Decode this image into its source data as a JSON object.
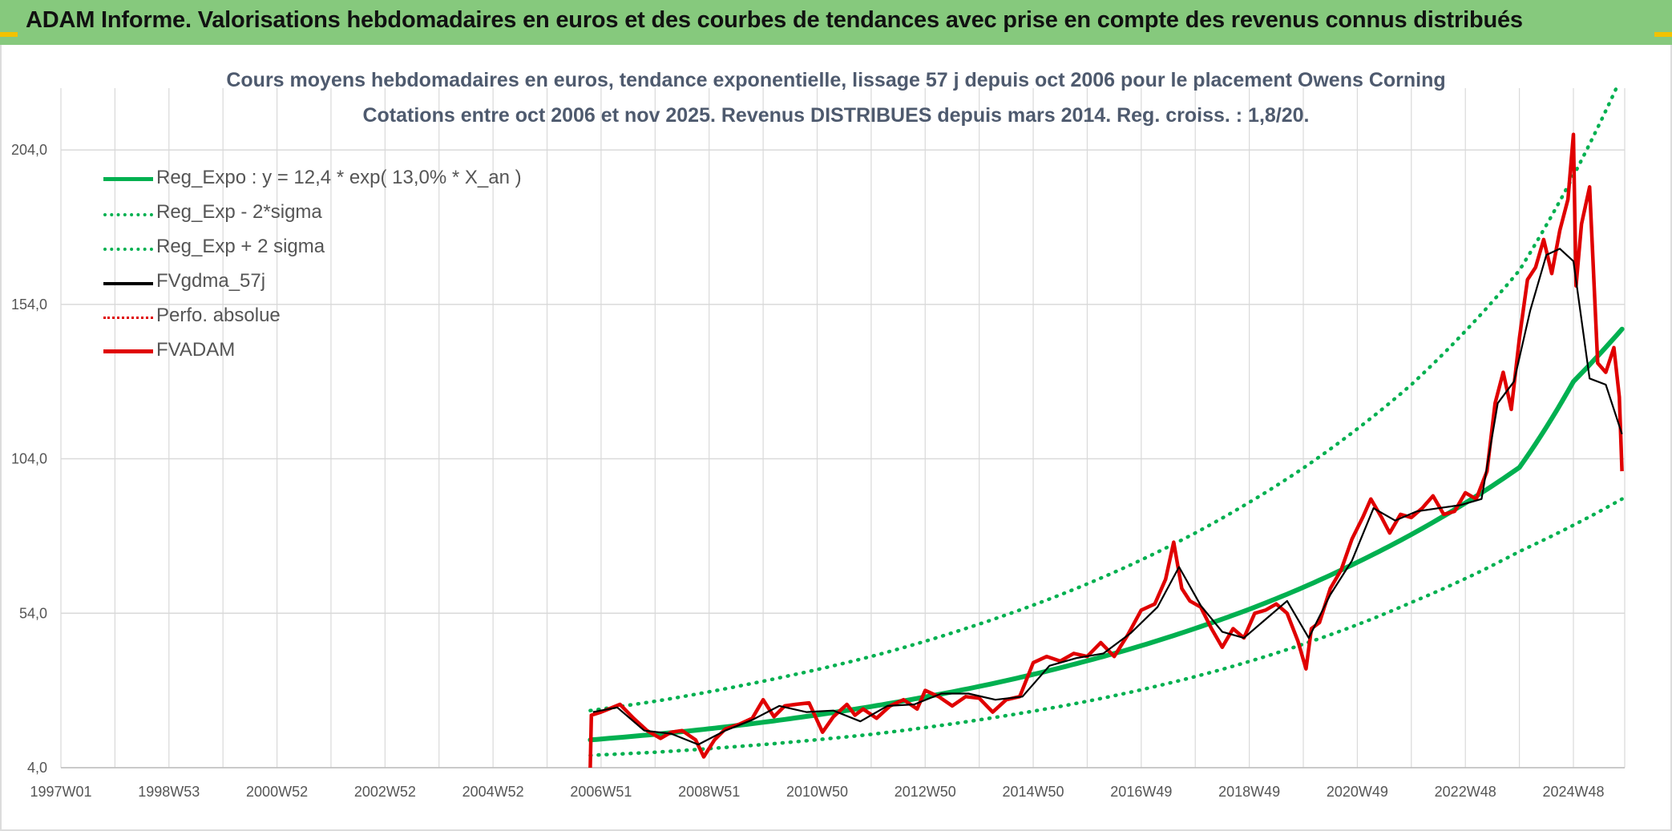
{
  "header": {
    "title": "ADAM Informe. Valorisations hebdomadaires en euros et des courbes de tendances avec prise en compte des revenus connus distribués"
  },
  "chart_data": {
    "type": "line",
    "title_line1": "Cours moyens hebdomadaires en euros, tendance exponentielle, lissage 57 j depuis oct 2006 pour le placement Owens Corning",
    "title_line2": "Cotations entre oct 2006 et nov 2025. Revenus DISTRIBUES depuis mars 2014. Reg. croiss. : 1,8/20.",
    "xlabel": "",
    "ylabel": "",
    "x_ticks": [
      "1997W01",
      "1998W53",
      "2000W52",
      "2002W52",
      "2004W52",
      "2006W51",
      "2008W51",
      "2010W50",
      "2012W50",
      "2014W50",
      "2016W49",
      "2018W49",
      "2020W49",
      "2022W48",
      "2024W48"
    ],
    "y_ticks": [
      "4,0",
      "54,0",
      "104,0",
      "154,0",
      "204,0"
    ],
    "ylim": [
      4,
      224
    ],
    "xlim": [
      1997.0,
      2025.95
    ],
    "grid": true,
    "legend_position": "top-left",
    "colors": {
      "reg_expo": "#00b050",
      "sigma_bands": "#00b050",
      "fvgdma": "#000000",
      "perfo": "#e00000",
      "fvadam": "#e00000",
      "header_bg": "#86c97d"
    },
    "legend": [
      {
        "key": "reg_expo",
        "label": "Reg_Expo : y = 12,4 * exp( 13,0% *  X_an )",
        "style": "solid-thick",
        "color": "#00b050"
      },
      {
        "key": "reg_minus",
        "label": "Reg_Exp - 2*sigma",
        "style": "dotted",
        "color": "#00b050"
      },
      {
        "key": "reg_plus",
        "label": "Reg_Exp + 2 sigma",
        "style": "dotted",
        "color": "#00b050"
      },
      {
        "key": "fvgdma",
        "label": "FVgdma_57j",
        "style": "solid",
        "color": "#000000"
      },
      {
        "key": "perfo",
        "label": "Perfo. absolue",
        "style": "dotted",
        "color": "#e00000"
      },
      {
        "key": "fvadam",
        "label": "FVADAM",
        "style": "solid-thick",
        "color": "#e00000"
      }
    ],
    "series": [
      {
        "name": "Reg_Expo : y = 12,4 * exp( 13,0% *  X_an )",
        "key": "reg_expo",
        "x": [
          2006.8,
          2008.0,
          2009.0,
          2010.0,
          2011.0,
          2012.0,
          2013.0,
          2014.0,
          2015.0,
          2016.0,
          2017.0,
          2018.0,
          2019.0,
          2020.0,
          2021.0,
          2022.0,
          2023.0,
          2024.0,
          2025.0,
          2025.9
        ],
        "values": [
          13.0,
          14.8,
          16.6,
          18.7,
          21.1,
          23.8,
          26.9,
          30.3,
          34.2,
          38.6,
          43.5,
          49.1,
          55.3,
          62.4,
          70.5,
          79.5,
          89.7,
          101.2,
          129.0,
          146.0
        ]
      },
      {
        "name": "Reg_Exp - 2*sigma",
        "key": "reg_minus",
        "x": [
          2006.8,
          2008.0,
          2010.0,
          2012.0,
          2014.0,
          2016.0,
          2018.0,
          2020.0,
          2022.0,
          2024.0,
          2025.9
        ],
        "values": [
          8.0,
          9.0,
          11.5,
          14.8,
          19.5,
          25.5,
          33.5,
          44.0,
          57.5,
          74.0,
          91.0
        ]
      },
      {
        "name": "Reg_Exp + 2 sigma",
        "key": "reg_plus",
        "x": [
          2006.8,
          2008.0,
          2010.0,
          2012.0,
          2014.0,
          2016.0,
          2018.0,
          2020.0,
          2022.0,
          2024.0,
          2025.9
        ],
        "values": [
          22.5,
          25.5,
          32.0,
          40.0,
          50.5,
          63.5,
          80.0,
          101.0,
          128.0,
          165.0,
          228.0
        ]
      },
      {
        "name": "FVgdma_57j",
        "key": "fvgdma",
        "x": [
          2006.85,
          2007.3,
          2007.8,
          2008.3,
          2008.8,
          2009.3,
          2009.8,
          2010.3,
          2010.8,
          2011.3,
          2011.8,
          2012.3,
          2012.8,
          2013.3,
          2013.8,
          2014.3,
          2014.8,
          2015.3,
          2015.8,
          2016.3,
          2016.8,
          2017.3,
          2017.7,
          2018.1,
          2018.5,
          2018.9,
          2019.3,
          2019.7,
          2020.1,
          2020.5,
          2020.9,
          2021.3,
          2021.7,
          2022.1,
          2022.5,
          2022.9,
          2023.3,
          2023.6,
          2023.9,
          2024.2,
          2024.5,
          2024.75,
          2025.0,
          2025.3,
          2025.6,
          2025.9
        ],
        "values": [
          22.0,
          23.5,
          16.0,
          15.0,
          11.5,
          16.0,
          19.5,
          24.0,
          22.0,
          22.5,
          19.0,
          24.0,
          24.5,
          28.0,
          28.0,
          26.0,
          27.0,
          37.0,
          39.5,
          41.0,
          47.5,
          56.0,
          69.0,
          56.5,
          48.0,
          46.0,
          52.0,
          58.0,
          46.0,
          60.0,
          71.0,
          88.0,
          84.0,
          87.0,
          88.0,
          89.0,
          91.0,
          122.0,
          129.0,
          152.0,
          170.0,
          172.0,
          168.0,
          130.0,
          128.0,
          112.0
        ]
      },
      {
        "name": "FVADAM",
        "key": "fvadam",
        "x": [
          2006.8,
          2006.82,
          2007.0,
          2007.35,
          2007.6,
          2007.85,
          2008.1,
          2008.3,
          2008.5,
          2008.75,
          2008.9,
          2009.1,
          2009.3,
          2009.55,
          2009.8,
          2010.0,
          2010.2,
          2010.4,
          2010.6,
          2010.85,
          2011.1,
          2011.3,
          2011.55,
          2011.7,
          2011.85,
          2012.1,
          2012.35,
          2012.6,
          2012.85,
          2013.0,
          2013.25,
          2013.5,
          2013.75,
          2014.0,
          2014.25,
          2014.5,
          2014.75,
          2015.0,
          2015.25,
          2015.5,
          2015.75,
          2016.0,
          2016.25,
          2016.5,
          2016.75,
          2017.0,
          2017.25,
          2017.45,
          2017.6,
          2017.75,
          2017.9,
          2018.1,
          2018.3,
          2018.5,
          2018.7,
          2018.9,
          2019.1,
          2019.3,
          2019.5,
          2019.7,
          2019.9,
          2020.05,
          2020.15,
          2020.3,
          2020.5,
          2020.7,
          2020.9,
          2021.1,
          2021.25,
          2021.45,
          2021.6,
          2021.8,
          2022.0,
          2022.2,
          2022.4,
          2022.6,
          2022.8,
          2023.0,
          2023.2,
          2023.4,
          2023.55,
          2023.7,
          2023.85,
          2024.0,
          2024.15,
          2024.3,
          2024.45,
          2024.6,
          2024.75,
          2024.9,
          2025.0,
          2025.05,
          2025.15,
          2025.3,
          2025.45,
          2025.6,
          2025.75,
          2025.85,
          2025.9
        ],
        "values": [
          4.0,
          21.0,
          22.0,
          24.5,
          20.0,
          16.0,
          13.5,
          15.5,
          16.0,
          13.0,
          7.5,
          13.0,
          16.5,
          18.0,
          20.0,
          26.0,
          20.5,
          24.0,
          24.5,
          25.0,
          15.5,
          20.5,
          24.5,
          21.0,
          23.0,
          20.0,
          24.0,
          26.0,
          23.0,
          29.0,
          27.0,
          24.0,
          27.0,
          26.5,
          22.0,
          26.0,
          27.0,
          38.0,
          40.0,
          38.5,
          41.0,
          40.0,
          44.5,
          40.0,
          47.0,
          55.0,
          57.0,
          65.0,
          77.0,
          62.0,
          58.0,
          56.0,
          49.0,
          43.0,
          49.0,
          46.0,
          54.0,
          55.0,
          57.0,
          54.0,
          45.0,
          36.0,
          49.0,
          51.0,
          62.0,
          68.0,
          78.0,
          85.0,
          91.0,
          85.0,
          80.0,
          86.0,
          85.0,
          88.0,
          92.0,
          86.0,
          87.0,
          93.0,
          91.0,
          100.0,
          122.0,
          132.0,
          120.0,
          143.0,
          162.0,
          166.0,
          175.0,
          164.0,
          178.0,
          188.0,
          209.0,
          160.0,
          180.0,
          192.0,
          135.0,
          132.0,
          140.0,
          124.0,
          100.0
        ]
      }
    ]
  }
}
